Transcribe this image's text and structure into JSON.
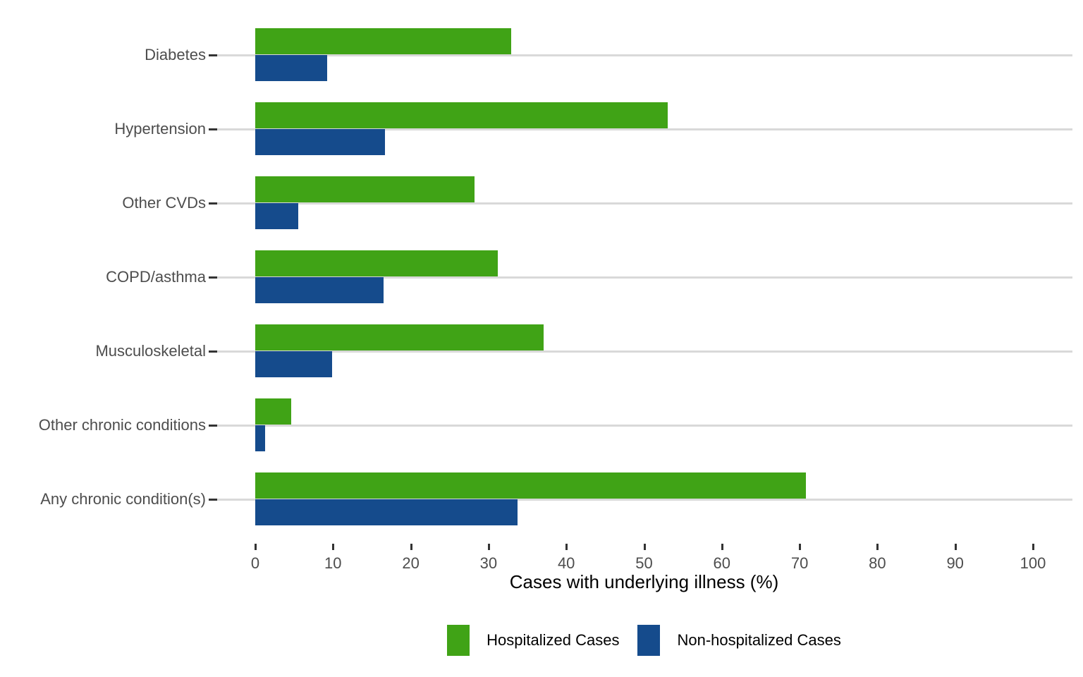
{
  "chart_data": {
    "type": "bar",
    "orientation": "horizontal",
    "title": "",
    "xlabel": "Cases with underlying illness (%)",
    "ylabel": "",
    "xlim": [
      0,
      100
    ],
    "xticks": [
      0,
      10,
      20,
      30,
      40,
      50,
      60,
      70,
      80,
      90,
      100
    ],
    "grid": "horizontal-only",
    "legend_position": "bottom-center",
    "categories": [
      "Diabetes",
      "Hypertension",
      "Other CVDs",
      "COPD/asthma",
      "Musculoskeletal",
      "Other chronic conditions",
      "Any chronic condition(s)"
    ],
    "series": [
      {
        "name": "Hospitalized Cases",
        "color": "#40a316",
        "values": [
          32.9,
          53.0,
          28.2,
          31.2,
          37.1,
          4.6,
          70.8
        ]
      },
      {
        "name": "Non-hospitalized Cases",
        "color": "#154b8c",
        "values": [
          9.2,
          16.7,
          5.5,
          16.5,
          9.9,
          1.3,
          33.7
        ]
      }
    ],
    "colors": {
      "gridline": "#d9d9d9",
      "tick": "#333333",
      "tick_label": "#4d4d4d",
      "axis_title": "#000000",
      "background": "#ffffff"
    }
  }
}
